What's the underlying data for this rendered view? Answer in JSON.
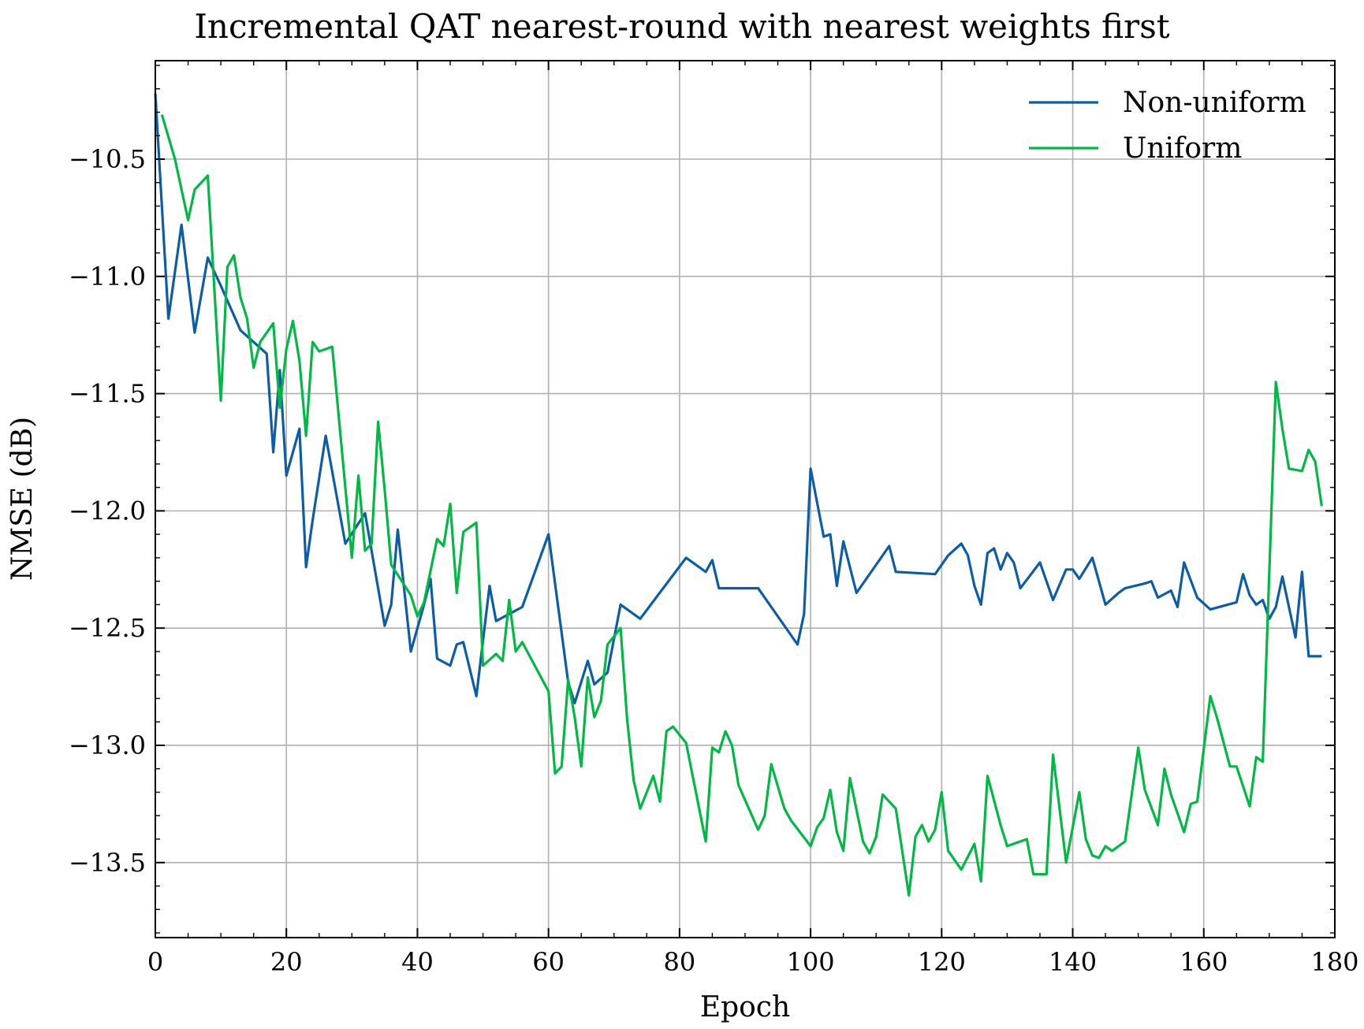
{
  "chart_data": {
    "type": "line",
    "title": "Incremental QAT nearest-round with nearest weights first",
    "xlabel": "Epoch",
    "ylabel": "NMSE (dB)",
    "xlim": [
      0,
      180
    ],
    "ylim": [
      -13.82,
      -10.08
    ],
    "xticks": [
      0,
      20,
      40,
      60,
      80,
      100,
      120,
      140,
      160,
      180
    ],
    "yticks": [
      -10.5,
      -11.0,
      -11.5,
      -12.0,
      -12.5,
      -13.0,
      -13.5
    ],
    "xtick_labels": [
      "0",
      "20",
      "40",
      "60",
      "80",
      "100",
      "120",
      "140",
      "160",
      "180"
    ],
    "ytick_labels": [
      "−10.5",
      "−11.0",
      "−11.5",
      "−12.0",
      "−12.5",
      "−13.0",
      "−13.5"
    ],
    "grid": true,
    "legend_position": "top-right",
    "series": [
      {
        "name": "Non-uniform",
        "color": "#0C5DA5",
        "points": [
          [
            0,
            -10.22
          ],
          [
            2,
            -11.18
          ],
          [
            4,
            -10.78
          ],
          [
            6,
            -11.24
          ],
          [
            8,
            -10.92
          ],
          [
            10,
            -11.04
          ],
          [
            13,
            -11.23
          ],
          [
            17,
            -11.33
          ],
          [
            18,
            -11.75
          ],
          [
            19,
            -11.4
          ],
          [
            20,
            -11.85
          ],
          [
            22,
            -11.65
          ],
          [
            23,
            -12.24
          ],
          [
            24,
            -12.04
          ],
          [
            26,
            -11.68
          ],
          [
            29,
            -12.14
          ],
          [
            32,
            -12.01
          ],
          [
            35,
            -12.49
          ],
          [
            36,
            -12.4
          ],
          [
            37,
            -12.08
          ],
          [
            38,
            -12.34
          ],
          [
            39,
            -12.6
          ],
          [
            41,
            -12.4
          ],
          [
            42,
            -12.29
          ],
          [
            43,
            -12.63
          ],
          [
            45,
            -12.66
          ],
          [
            46,
            -12.57
          ],
          [
            47,
            -12.56
          ],
          [
            49,
            -12.79
          ],
          [
            51,
            -12.32
          ],
          [
            52,
            -12.47
          ],
          [
            54,
            -12.44
          ],
          [
            56,
            -12.41
          ],
          [
            60,
            -12.1
          ],
          [
            63,
            -12.73
          ],
          [
            64,
            -12.82
          ],
          [
            66,
            -12.64
          ],
          [
            67,
            -12.74
          ],
          [
            69,
            -12.69
          ],
          [
            71,
            -12.4
          ],
          [
            74,
            -12.46
          ],
          [
            81,
            -12.2
          ],
          [
            84,
            -12.26
          ],
          [
            85,
            -12.21
          ],
          [
            86,
            -12.33
          ],
          [
            92,
            -12.33
          ],
          [
            98,
            -12.57
          ],
          [
            99,
            -12.44
          ],
          [
            100,
            -11.82
          ],
          [
            102,
            -12.11
          ],
          [
            103,
            -12.1
          ],
          [
            104,
            -12.32
          ],
          [
            105,
            -12.13
          ],
          [
            107,
            -12.35
          ],
          [
            112,
            -12.15
          ],
          [
            113,
            -12.26
          ],
          [
            119,
            -12.27
          ],
          [
            121,
            -12.19
          ],
          [
            123,
            -12.14
          ],
          [
            124,
            -12.19
          ],
          [
            125,
            -12.32
          ],
          [
            126,
            -12.4
          ],
          [
            127,
            -12.18
          ],
          [
            128,
            -12.16
          ],
          [
            129,
            -12.25
          ],
          [
            130,
            -12.18
          ],
          [
            131,
            -12.22
          ],
          [
            132,
            -12.33
          ],
          [
            135,
            -12.22
          ],
          [
            137,
            -12.38
          ],
          [
            139,
            -12.25
          ],
          [
            140,
            -12.25
          ],
          [
            141,
            -12.29
          ],
          [
            143,
            -12.2
          ],
          [
            145,
            -12.4
          ],
          [
            147,
            -12.35
          ],
          [
            148,
            -12.33
          ],
          [
            151,
            -12.31
          ],
          [
            152,
            -12.3
          ],
          [
            153,
            -12.37
          ],
          [
            155,
            -12.34
          ],
          [
            156,
            -12.41
          ],
          [
            157,
            -12.22
          ],
          [
            159,
            -12.37
          ],
          [
            161,
            -12.42
          ],
          [
            165,
            -12.39
          ],
          [
            166,
            -12.27
          ],
          [
            167,
            -12.36
          ],
          [
            168,
            -12.4
          ],
          [
            169,
            -12.38
          ],
          [
            170,
            -12.46
          ],
          [
            171,
            -12.41
          ],
          [
            172,
            -12.28
          ],
          [
            174,
            -12.54
          ],
          [
            175,
            -12.26
          ],
          [
            176,
            -12.62
          ],
          [
            178,
            -12.62
          ]
        ]
      },
      {
        "name": "Uniform",
        "color": "#00B945",
        "points": [
          [
            1,
            -10.31
          ],
          [
            3,
            -10.5
          ],
          [
            5,
            -10.76
          ],
          [
            6,
            -10.63
          ],
          [
            8,
            -10.57
          ],
          [
            10,
            -11.53
          ],
          [
            11,
            -10.96
          ],
          [
            12,
            -10.91
          ],
          [
            13,
            -11.09
          ],
          [
            14,
            -11.18
          ],
          [
            15,
            -11.39
          ],
          [
            16,
            -11.28
          ],
          [
            18,
            -11.2
          ],
          [
            19,
            -11.56
          ],
          [
            20,
            -11.31
          ],
          [
            21,
            -11.19
          ],
          [
            22,
            -11.36
          ],
          [
            23,
            -11.68
          ],
          [
            24,
            -11.28
          ],
          [
            25,
            -11.32
          ],
          [
            27,
            -11.3
          ],
          [
            30,
            -12.2
          ],
          [
            31,
            -11.85
          ],
          [
            32,
            -12.17
          ],
          [
            33,
            -12.14
          ],
          [
            34,
            -11.62
          ],
          [
            35,
            -11.91
          ],
          [
            36,
            -12.23
          ],
          [
            39,
            -12.36
          ],
          [
            40,
            -12.45
          ],
          [
            41,
            -12.39
          ],
          [
            43,
            -12.12
          ],
          [
            44,
            -12.15
          ],
          [
            45,
            -11.97
          ],
          [
            46,
            -12.35
          ],
          [
            47,
            -12.09
          ],
          [
            49,
            -12.05
          ],
          [
            50,
            -12.66
          ],
          [
            52,
            -12.61
          ],
          [
            53,
            -12.64
          ],
          [
            54,
            -12.38
          ],
          [
            55,
            -12.6
          ],
          [
            56,
            -12.56
          ],
          [
            60,
            -12.77
          ],
          [
            61,
            -13.12
          ],
          [
            62,
            -13.09
          ],
          [
            63,
            -12.72
          ],
          [
            64,
            -12.88
          ],
          [
            65,
            -13.09
          ],
          [
            66,
            -12.71
          ],
          [
            67,
            -12.88
          ],
          [
            68,
            -12.81
          ],
          [
            69,
            -12.57
          ],
          [
            71,
            -12.5
          ],
          [
            72,
            -12.89
          ],
          [
            73,
            -13.15
          ],
          [
            74,
            -13.27
          ],
          [
            76,
            -13.13
          ],
          [
            77,
            -13.24
          ],
          [
            78,
            -12.94
          ],
          [
            79,
            -12.92
          ],
          [
            81,
            -12.99
          ],
          [
            82,
            -13.13
          ],
          [
            84,
            -13.41
          ],
          [
            85,
            -13.01
          ],
          [
            86,
            -13.03
          ],
          [
            87,
            -12.94
          ],
          [
            88,
            -13.0
          ],
          [
            89,
            -13.17
          ],
          [
            92,
            -13.36
          ],
          [
            93,
            -13.3
          ],
          [
            94,
            -13.08
          ],
          [
            96,
            -13.27
          ],
          [
            97,
            -13.32
          ],
          [
            100,
            -13.43
          ],
          [
            101,
            -13.35
          ],
          [
            102,
            -13.31
          ],
          [
            103,
            -13.19
          ],
          [
            104,
            -13.37
          ],
          [
            105,
            -13.45
          ],
          [
            106,
            -13.14
          ],
          [
            108,
            -13.41
          ],
          [
            109,
            -13.46
          ],
          [
            110,
            -13.39
          ],
          [
            111,
            -13.21
          ],
          [
            113,
            -13.27
          ],
          [
            115,
            -13.64
          ],
          [
            116,
            -13.39
          ],
          [
            117,
            -13.34
          ],
          [
            118,
            -13.41
          ],
          [
            119,
            -13.36
          ],
          [
            120,
            -13.2
          ],
          [
            121,
            -13.45
          ],
          [
            123,
            -13.53
          ],
          [
            125,
            -13.42
          ],
          [
            126,
            -13.58
          ],
          [
            127,
            -13.13
          ],
          [
            129,
            -13.34
          ],
          [
            130,
            -13.43
          ],
          [
            133,
            -13.4
          ],
          [
            134,
            -13.55
          ],
          [
            136,
            -13.55
          ],
          [
            137,
            -13.04
          ],
          [
            139,
            -13.5
          ],
          [
            141,
            -13.2
          ],
          [
            142,
            -13.4
          ],
          [
            143,
            -13.47
          ],
          [
            144,
            -13.48
          ],
          [
            145,
            -13.43
          ],
          [
            146,
            -13.45
          ],
          [
            148,
            -13.41
          ],
          [
            150,
            -13.01
          ],
          [
            151,
            -13.19
          ],
          [
            153,
            -13.34
          ],
          [
            154,
            -13.1
          ],
          [
            155,
            -13.21
          ],
          [
            157,
            -13.37
          ],
          [
            158,
            -13.25
          ],
          [
            159,
            -13.24
          ],
          [
            161,
            -12.79
          ],
          [
            162,
            -12.88
          ],
          [
            164,
            -13.09
          ],
          [
            165,
            -13.09
          ],
          [
            167,
            -13.26
          ],
          [
            168,
            -13.05
          ],
          [
            169,
            -13.07
          ],
          [
            171,
            -11.45
          ],
          [
            172,
            -11.65
          ],
          [
            173,
            -11.82
          ],
          [
            175,
            -11.83
          ],
          [
            176,
            -11.74
          ],
          [
            177,
            -11.79
          ],
          [
            178,
            -11.98
          ]
        ]
      }
    ]
  }
}
